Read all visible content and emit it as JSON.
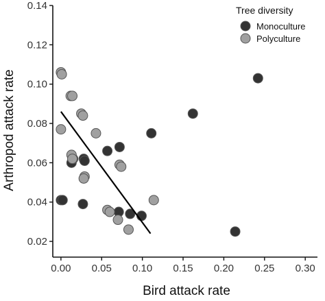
{
  "chart_data": {
    "type": "scatter",
    "xlabel": "Bird attack rate",
    "ylabel": "Arthropod attack rate",
    "xlim": [
      -0.01,
      0.315
    ],
    "ylim": [
      0.012,
      0.14
    ],
    "xticks": [
      0.0,
      0.05,
      0.1,
      0.15,
      0.2,
      0.25,
      0.3
    ],
    "xtick_labels": [
      "0.00",
      "0.05",
      "0.10",
      "0.15",
      "0.20",
      "0.25",
      "0.30"
    ],
    "yticks": [
      0.02,
      0.04,
      0.06,
      0.08,
      0.1,
      0.12,
      0.14
    ],
    "ytick_labels": [
      "0.02",
      "0.04",
      "0.06",
      "0.08",
      "0.10",
      "0.12",
      "0.14"
    ],
    "grid": false,
    "legend": {
      "title": "Tree diversity",
      "placement": "top-right"
    },
    "series": [
      {
        "name": "Monoculture",
        "color": "#333333",
        "points": [
          {
            "x": 0.0,
            "y": 0.041
          },
          {
            "x": 0.002,
            "y": 0.041
          },
          {
            "x": 0.013,
            "y": 0.06
          },
          {
            "x": 0.015,
            "y": 0.062
          },
          {
            "x": 0.027,
            "y": 0.039
          },
          {
            "x": 0.028,
            "y": 0.062
          },
          {
            "x": 0.029,
            "y": 0.061
          },
          {
            "x": 0.057,
            "y": 0.066
          },
          {
            "x": 0.071,
            "y": 0.035
          },
          {
            "x": 0.072,
            "y": 0.068
          },
          {
            "x": 0.085,
            "y": 0.034
          },
          {
            "x": 0.099,
            "y": 0.033
          },
          {
            "x": 0.111,
            "y": 0.075
          },
          {
            "x": 0.162,
            "y": 0.085
          },
          {
            "x": 0.214,
            "y": 0.025
          },
          {
            "x": 0.242,
            "y": 0.103
          }
        ]
      },
      {
        "name": "Polyculture",
        "color": "#a0a0a0",
        "points": [
          {
            "x": 0.0,
            "y": 0.106
          },
          {
            "x": 0.001,
            "y": 0.105
          },
          {
            "x": 0.0,
            "y": 0.077
          },
          {
            "x": 0.012,
            "y": 0.094
          },
          {
            "x": 0.014,
            "y": 0.094
          },
          {
            "x": 0.013,
            "y": 0.064
          },
          {
            "x": 0.014,
            "y": 0.062
          },
          {
            "x": 0.025,
            "y": 0.085
          },
          {
            "x": 0.027,
            "y": 0.084
          },
          {
            "x": 0.029,
            "y": 0.053
          },
          {
            "x": 0.028,
            "y": 0.052
          },
          {
            "x": 0.043,
            "y": 0.075
          },
          {
            "x": 0.057,
            "y": 0.036
          },
          {
            "x": 0.06,
            "y": 0.035
          },
          {
            "x": 0.07,
            "y": 0.031
          },
          {
            "x": 0.072,
            "y": 0.059
          },
          {
            "x": 0.074,
            "y": 0.058
          },
          {
            "x": 0.083,
            "y": 0.026
          },
          {
            "x": 0.114,
            "y": 0.041
          }
        ]
      }
    ],
    "trendline": {
      "x": [
        0.0,
        0.11
      ],
      "y": [
        0.086,
        0.024
      ],
      "color": "#000000"
    }
  }
}
